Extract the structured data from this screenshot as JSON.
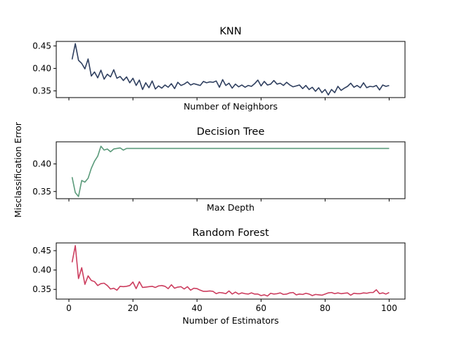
{
  "figure": {
    "shared_ylabel": "Misclassification Error",
    "background": "#ffffff"
  },
  "chart_data": [
    {
      "type": "line",
      "title": "KNN",
      "xlabel": "Number of Neighbors",
      "ylabel": "",
      "color": "#2f3f5f",
      "xlim": [
        -3.95,
        104.95
      ],
      "ylim": [
        0.335,
        0.46
      ],
      "x_ticks": [
        0,
        20,
        40,
        60,
        80,
        100
      ],
      "x_tick_labels_visible": false,
      "y_ticks": [
        0.35,
        0.4,
        0.45
      ],
      "y_tick_labels": [
        "0.35",
        "0.40",
        "0.45"
      ],
      "grid": false,
      "x": [
        1,
        2,
        3,
        4,
        5,
        6,
        7,
        8,
        9,
        10,
        11,
        12,
        13,
        14,
        15,
        16,
        17,
        18,
        19,
        20,
        21,
        22,
        23,
        24,
        25,
        26,
        27,
        28,
        29,
        30,
        31,
        32,
        33,
        34,
        35,
        36,
        37,
        38,
        39,
        40,
        41,
        42,
        43,
        44,
        45,
        46,
        47,
        48,
        49,
        50,
        51,
        52,
        53,
        54,
        55,
        56,
        57,
        58,
        59,
        60,
        61,
        62,
        63,
        64,
        65,
        66,
        67,
        68,
        69,
        70,
        71,
        72,
        73,
        74,
        75,
        76,
        77,
        78,
        79,
        80,
        81,
        82,
        83,
        84,
        85,
        86,
        87,
        88,
        89,
        90,
        91,
        92,
        93,
        94,
        95,
        96,
        97,
        98,
        99,
        100
      ],
      "y": [
        0.42,
        0.455,
        0.418,
        0.411,
        0.399,
        0.421,
        0.383,
        0.392,
        0.379,
        0.396,
        0.376,
        0.387,
        0.381,
        0.397,
        0.378,
        0.382,
        0.373,
        0.381,
        0.368,
        0.378,
        0.362,
        0.374,
        0.353,
        0.368,
        0.357,
        0.372,
        0.354,
        0.361,
        0.356,
        0.363,
        0.358,
        0.366,
        0.355,
        0.369,
        0.362,
        0.365,
        0.37,
        0.363,
        0.366,
        0.364,
        0.362,
        0.371,
        0.368,
        0.37,
        0.369,
        0.372,
        0.358,
        0.375,
        0.362,
        0.367,
        0.356,
        0.365,
        0.359,
        0.363,
        0.358,
        0.362,
        0.36,
        0.366,
        0.374,
        0.361,
        0.371,
        0.363,
        0.365,
        0.373,
        0.365,
        0.367,
        0.362,
        0.369,
        0.363,
        0.359,
        0.361,
        0.363,
        0.355,
        0.362,
        0.353,
        0.358,
        0.349,
        0.357,
        0.346,
        0.353,
        0.341,
        0.353,
        0.346,
        0.36,
        0.351,
        0.356,
        0.36,
        0.367,
        0.358,
        0.362,
        0.357,
        0.368,
        0.357,
        0.36,
        0.359,
        0.362,
        0.352,
        0.363,
        0.36,
        0.362
      ]
    },
    {
      "type": "line",
      "title": "Decision Tree",
      "xlabel": "Max Depth",
      "ylabel": "",
      "color": "#5a9a7a",
      "xlim": [
        -3.95,
        104.95
      ],
      "ylim": [
        0.337,
        0.44
      ],
      "x_ticks": [
        0,
        20,
        40,
        60,
        80,
        100
      ],
      "x_tick_labels_visible": false,
      "y_ticks": [
        0.35,
        0.4
      ],
      "y_tick_labels": [
        "0.35",
        "0.40"
      ],
      "grid": false,
      "x": [
        1,
        2,
        3,
        4,
        5,
        6,
        7,
        8,
        9,
        10,
        11,
        12,
        13,
        14,
        15,
        16,
        17,
        18,
        19,
        20,
        21,
        22,
        23,
        24,
        25,
        26,
        27,
        28,
        29,
        30,
        31,
        32,
        33,
        34,
        35,
        36,
        37,
        38,
        39,
        40,
        41,
        42,
        43,
        44,
        45,
        46,
        47,
        48,
        49,
        50,
        51,
        52,
        53,
        54,
        55,
        56,
        57,
        58,
        59,
        60,
        61,
        62,
        63,
        64,
        65,
        66,
        67,
        68,
        69,
        70,
        71,
        72,
        73,
        74,
        75,
        76,
        77,
        78,
        79,
        80,
        81,
        82,
        83,
        84,
        85,
        86,
        87,
        88,
        89,
        90,
        91,
        92,
        93,
        94,
        95,
        96,
        97,
        98,
        99,
        100
      ],
      "y": [
        0.376,
        0.348,
        0.341,
        0.37,
        0.367,
        0.374,
        0.392,
        0.405,
        0.414,
        0.432,
        0.425,
        0.427,
        0.422,
        0.427,
        0.428,
        0.429,
        0.425,
        0.428,
        0.428,
        0.428,
        0.428,
        0.428,
        0.428,
        0.428,
        0.428,
        0.428,
        0.428,
        0.428,
        0.428,
        0.428,
        0.428,
        0.428,
        0.428,
        0.428,
        0.428,
        0.428,
        0.428,
        0.428,
        0.428,
        0.428,
        0.428,
        0.428,
        0.428,
        0.428,
        0.428,
        0.428,
        0.428,
        0.428,
        0.428,
        0.428,
        0.428,
        0.428,
        0.428,
        0.428,
        0.428,
        0.428,
        0.428,
        0.428,
        0.428,
        0.428,
        0.428,
        0.428,
        0.428,
        0.428,
        0.428,
        0.428,
        0.428,
        0.428,
        0.428,
        0.428,
        0.428,
        0.428,
        0.428,
        0.428,
        0.428,
        0.428,
        0.428,
        0.428,
        0.428,
        0.428,
        0.428,
        0.428,
        0.428,
        0.428,
        0.428,
        0.428,
        0.428,
        0.428,
        0.428,
        0.428,
        0.428,
        0.428,
        0.428,
        0.428,
        0.428,
        0.428,
        0.428,
        0.428,
        0.428,
        0.428
      ]
    },
    {
      "type": "line",
      "title": "Random Forest",
      "xlabel": "Number of Estimators",
      "ylabel": "",
      "color": "#cc3e5f",
      "xlim": [
        -3.95,
        104.95
      ],
      "ylim": [
        0.325,
        0.47
      ],
      "x_ticks": [
        0,
        20,
        40,
        60,
        80,
        100
      ],
      "x_tick_labels": [
        "0",
        "20",
        "40",
        "60",
        "80",
        "100"
      ],
      "y_ticks": [
        0.35,
        0.4,
        0.45
      ],
      "y_tick_labels": [
        "0.35",
        "0.40",
        "0.45"
      ],
      "grid": false,
      "x": [
        1,
        2,
        3,
        4,
        5,
        6,
        7,
        8,
        9,
        10,
        11,
        12,
        13,
        14,
        15,
        16,
        17,
        18,
        19,
        20,
        21,
        22,
        23,
        24,
        25,
        26,
        27,
        28,
        29,
        30,
        31,
        32,
        33,
        34,
        35,
        36,
        37,
        38,
        39,
        40,
        41,
        42,
        43,
        44,
        45,
        46,
        47,
        48,
        49,
        50,
        51,
        52,
        53,
        54,
        55,
        56,
        57,
        58,
        59,
        60,
        61,
        62,
        63,
        64,
        65,
        66,
        67,
        68,
        69,
        70,
        71,
        72,
        73,
        74,
        75,
        76,
        77,
        78,
        79,
        80,
        81,
        82,
        83,
        84,
        85,
        86,
        87,
        88,
        89,
        90,
        91,
        92,
        93,
        94,
        95,
        96,
        97,
        98,
        99,
        100
      ],
      "y": [
        0.42,
        0.463,
        0.378,
        0.406,
        0.363,
        0.385,
        0.373,
        0.37,
        0.36,
        0.365,
        0.366,
        0.36,
        0.351,
        0.353,
        0.348,
        0.358,
        0.357,
        0.358,
        0.36,
        0.369,
        0.352,
        0.37,
        0.355,
        0.356,
        0.357,
        0.358,
        0.355,
        0.359,
        0.36,
        0.358,
        0.352,
        0.362,
        0.353,
        0.356,
        0.357,
        0.351,
        0.357,
        0.348,
        0.353,
        0.352,
        0.348,
        0.345,
        0.345,
        0.346,
        0.345,
        0.339,
        0.342,
        0.341,
        0.339,
        0.346,
        0.338,
        0.343,
        0.338,
        0.341,
        0.339,
        0.338,
        0.341,
        0.338,
        0.338,
        0.334,
        0.336,
        0.333,
        0.34,
        0.338,
        0.339,
        0.341,
        0.337,
        0.338,
        0.341,
        0.342,
        0.336,
        0.338,
        0.337,
        0.34,
        0.338,
        0.334,
        0.337,
        0.336,
        0.335,
        0.338,
        0.341,
        0.342,
        0.339,
        0.341,
        0.339,
        0.34,
        0.341,
        0.335,
        0.34,
        0.339,
        0.339,
        0.341,
        0.34,
        0.342,
        0.342,
        0.349,
        0.339,
        0.341,
        0.338,
        0.342
      ]
    }
  ]
}
